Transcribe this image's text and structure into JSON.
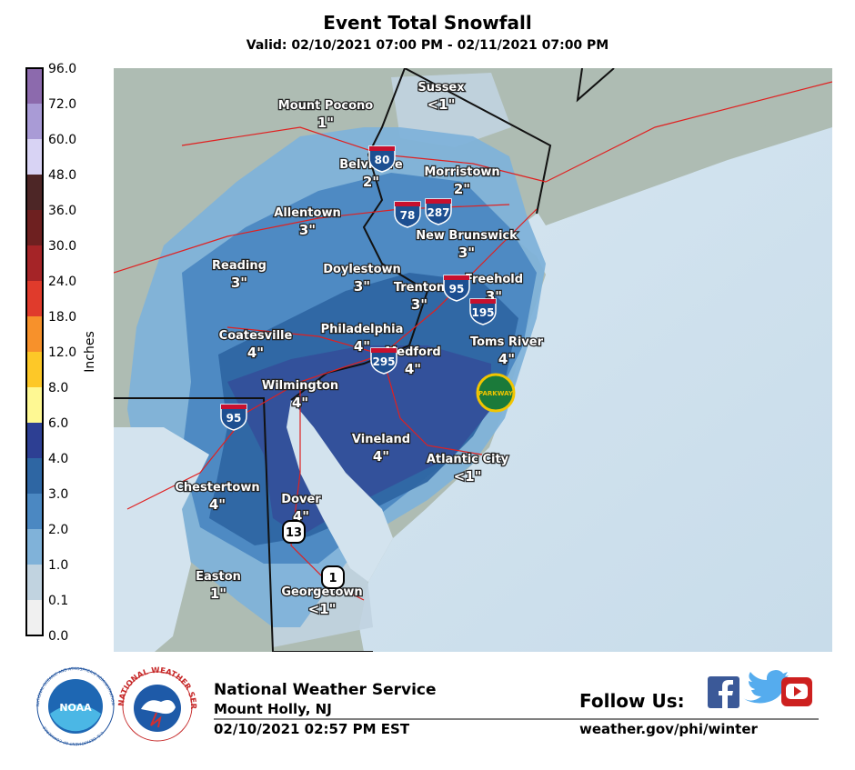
{
  "header": {
    "title": "Event Total Snowfall",
    "subtitle": "Valid: 02/10/2021 07:00 PM - 02/11/2021 07:00 PM"
  },
  "legend": {
    "title": "Inches",
    "labels": [
      "96.0",
      "72.0",
      "60.0",
      "48.0",
      "36.0",
      "30.0",
      "24.0",
      "18.0",
      "12.0",
      "8.0",
      "6.0",
      "4.0",
      "3.0",
      "2.0",
      "1.0",
      "0.1",
      "0.0"
    ],
    "colors": [
      "#8c6aad",
      "#a99bd6",
      "#d8d3f4",
      "#4d2626",
      "#6e2020",
      "#a52427",
      "#e03b2c",
      "#f7912b",
      "#fdc828",
      "#fef893",
      "#2d3f93",
      "#2e66a3",
      "#4b88c2",
      "#80b2d9",
      "#c1d3e0",
      "#f0f0f0"
    ]
  },
  "cities": [
    {
      "name": "Sussex",
      "amount": "<1\""
    },
    {
      "name": "Mount Pocono",
      "amount": "1\""
    },
    {
      "name": "Belvidere",
      "amount": "2\""
    },
    {
      "name": "Morristown",
      "amount": "2\""
    },
    {
      "name": "Allentown",
      "amount": "3\""
    },
    {
      "name": "New Brunswick",
      "amount": "3\""
    },
    {
      "name": "Reading",
      "amount": "3\""
    },
    {
      "name": "Doylestown",
      "amount": "3\""
    },
    {
      "name": "Trenton",
      "amount": "3\""
    },
    {
      "name": "Freehold",
      "amount": "3\""
    },
    {
      "name": "Philadelphia",
      "amount": "4\""
    },
    {
      "name": "Medford",
      "amount": "4\""
    },
    {
      "name": "Coatesville",
      "amount": "4\""
    },
    {
      "name": "Toms River",
      "amount": "4\""
    },
    {
      "name": "Wilmington",
      "amount": "4\""
    },
    {
      "name": "Vineland",
      "amount": "4\""
    },
    {
      "name": "Atlantic City",
      "amount": "<1\""
    },
    {
      "name": "Chestertown",
      "amount": "4\""
    },
    {
      "name": "Dover",
      "amount": "4\""
    },
    {
      "name": "Easton",
      "amount": "1\""
    },
    {
      "name": "Georgetown",
      "amount": "<1\""
    }
  ],
  "shields": [
    "80",
    "78",
    "287",
    "95",
    "195",
    "295",
    "95",
    "13",
    "1",
    "PARKWAY"
  ],
  "footer": {
    "office": "National Weather Service",
    "location": "Mount Holly, NJ",
    "issued": "02/10/2021 02:57 PM EST",
    "follow": "Follow Us:",
    "url": "weather.gov/phi/winter",
    "noaa_logo": "NOAA",
    "noaa_ring": "NATIONAL OCEANIC AND ATMOSPHERIC ADMINISTRATION",
    "noaa_ring2": "U.S. DEPARTMENT OF COMMERCE",
    "nws_ring": "NATIONAL WEATHER SERVICE"
  }
}
